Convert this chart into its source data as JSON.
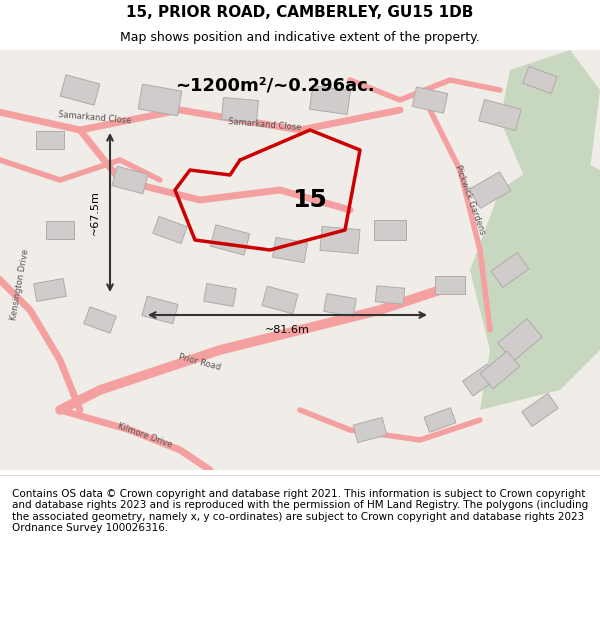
{
  "title": "15, PRIOR ROAD, CAMBERLEY, GU15 1DB",
  "subtitle": "Map shows position and indicative extent of the property.",
  "footer": "Contains OS data © Crown copyright and database right 2021. This information is subject to Crown copyright and database rights 2023 and is reproduced with the permission of HM Land Registry. The polygons (including the associated geometry, namely x, y co-ordinates) are subject to Crown copyright and database rights 2023 Ordnance Survey 100026316.",
  "bg_color": "#f5f0eb",
  "map_bg": "#f0ede8",
  "footer_bg": "#ffffff",
  "title_fontsize": 11,
  "subtitle_fontsize": 9,
  "footer_fontsize": 7.5,
  "area_text": "~1200m²/~0.296ac.",
  "width_text": "~81.6m",
  "height_text": "~67.5m",
  "property_number": "15",
  "red_color": "#cc0000",
  "pink_road_color": "#f5a0a0",
  "gray_building_color": "#d0cccc",
  "green_area_color": "#c8d8c0",
  "road_outline": "#e08080"
}
